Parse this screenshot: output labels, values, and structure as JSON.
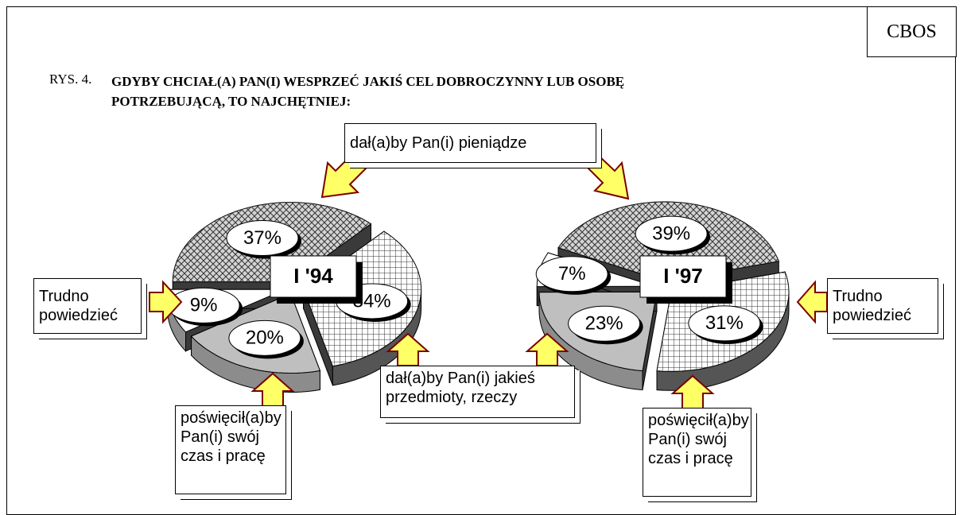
{
  "source": "CBOS",
  "figure_label": "RYS. 4.",
  "chart_data": {
    "type": "pie",
    "title": "GDYBY CHCIAŁ(A) PAN(I) WESPRZEĆ JAKIŚ CEL DOBROCZYNNY LUB OSOBĘ POTRZEBUJĄCĄ, TO NAJCHĘTNIEJ:",
    "categories": [
      "dał(a)by Pan(i) pieniądze",
      "dał(a)by Pan(i) jakieś przedmioty, rzeczy",
      "poświęcił(a)by Pan(i) swój czas i pracę",
      "Trudno powiedzieć"
    ],
    "colors": [
      "#d4d4d4",
      "#ffffff",
      "#bfbfbf",
      "#ffffff"
    ],
    "series": [
      {
        "name": "I '94",
        "values": [
          37,
          34,
          20,
          9
        ],
        "value_labels": [
          "37%",
          "34%",
          "20%",
          "9%"
        ]
      },
      {
        "name": "I '97",
        "values": [
          39,
          31,
          23,
          7
        ],
        "value_labels": [
          "39%",
          "31%",
          "23%",
          "7%"
        ]
      }
    ]
  }
}
